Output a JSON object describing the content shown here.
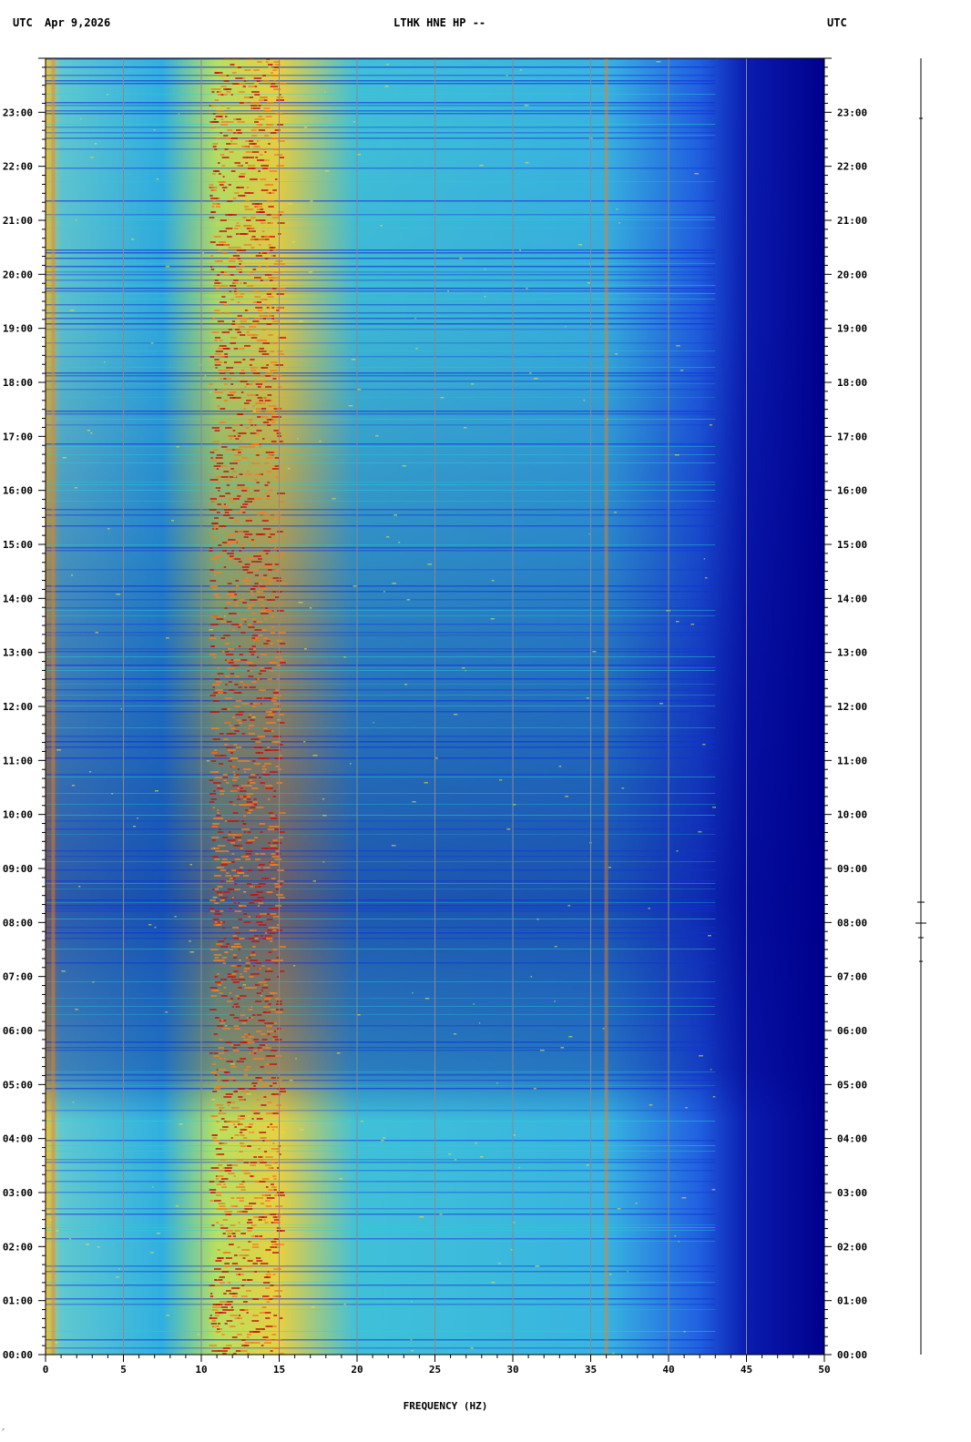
{
  "header": {
    "utc_left": "UTC",
    "date": "Apr 9,2026",
    "station": "LTHK HNE HP --",
    "utc_right": "UTC"
  },
  "footer_mark": "ᐟ",
  "chart_data": {
    "type": "heatmap",
    "title": "LTHK HNE HP --",
    "xlabel": "FREQUENCY (HZ)",
    "ylabel": "UTC",
    "xlim": [
      0,
      50
    ],
    "x_ticks": [
      "0",
      "5",
      "10",
      "15",
      "20",
      "25",
      "30",
      "35",
      "40",
      "45",
      "50"
    ],
    "y_time_range_hours": [
      0,
      24
    ],
    "y_ticks": [
      "00:00",
      "01:00",
      "02:00",
      "03:00",
      "04:00",
      "05:00",
      "06:00",
      "07:00",
      "08:00",
      "09:00",
      "10:00",
      "11:00",
      "12:00",
      "13:00",
      "14:00",
      "15:00",
      "16:00",
      "17:00",
      "18:00",
      "19:00",
      "20:00",
      "21:00",
      "22:00",
      "23:00"
    ],
    "y_tick_hours": [
      0,
      1,
      2,
      3,
      4,
      5,
      6,
      7,
      8,
      9,
      10,
      11,
      12,
      13,
      14,
      15,
      16,
      17,
      18,
      19,
      20,
      21,
      22,
      23
    ],
    "grid": true,
    "colormap": [
      "#00008c",
      "#1030d8",
      "#1e8ce8",
      "#28d4d4",
      "#9ae870",
      "#f0e040",
      "#f08020",
      "#c81010"
    ],
    "features": {
      "energy_cutoff_hz": 43,
      "strong_band_hz": [
        10.5,
        15
      ],
      "narrow_line_hz": [
        0.5,
        36
      ]
    }
  }
}
